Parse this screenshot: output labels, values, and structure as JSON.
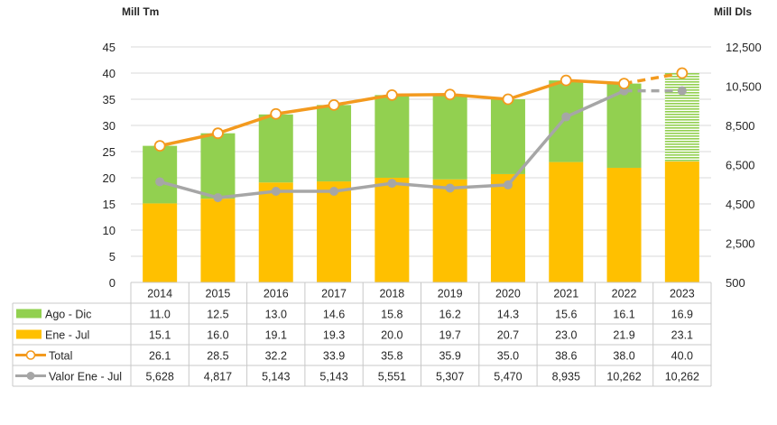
{
  "chart_data": {
    "type": "bar",
    "left_axis_label": "Mill Tm",
    "right_axis_label": "Mill Dls",
    "categories": [
      "2014",
      "2015",
      "2016",
      "2017",
      "2018",
      "2019",
      "2020",
      "2021",
      "2022",
      "2023"
    ],
    "ylim_left": [
      0,
      45
    ],
    "yticks_left": [
      "0",
      "5",
      "10",
      "15",
      "20",
      "25",
      "30",
      "35",
      "40",
      "45"
    ],
    "ylim_right": [
      500,
      12500
    ],
    "yticks_right": [
      "500",
      "2,500",
      "4,500",
      "6,500",
      "8,500",
      "10,500",
      "12,500"
    ],
    "series": [
      {
        "name": "Ago - Dic",
        "type": "bar",
        "stack": "top",
        "color": "#92D050",
        "values": [
          11.0,
          12.5,
          13.0,
          14.6,
          15.8,
          16.2,
          14.3,
          15.6,
          16.1,
          16.9
        ],
        "labels": [
          "11.0",
          "12.5",
          "13.0",
          "14.6",
          "15.8",
          "16.2",
          "14.3",
          "15.6",
          "16.1",
          "16.9"
        ]
      },
      {
        "name": "Ene - Jul",
        "type": "bar",
        "stack": "bottom",
        "color": "#FFC000",
        "values": [
          15.1,
          16.0,
          19.1,
          19.3,
          20.0,
          19.7,
          20.7,
          23.0,
          21.9,
          23.1
        ],
        "labels": [
          "15.1",
          "16.0",
          "19.1",
          "19.3",
          "20.0",
          "19.7",
          "20.7",
          "23.0",
          "21.9",
          "23.1"
        ]
      },
      {
        "name": "Total",
        "type": "line",
        "axis": "left",
        "color": "#F39A1E",
        "values": [
          26.1,
          28.5,
          32.2,
          33.9,
          35.8,
          35.9,
          35.0,
          38.6,
          38.0,
          40.0
        ],
        "labels": [
          "26.1",
          "28.5",
          "32.2",
          "33.9",
          "35.8",
          "35.9",
          "35.0",
          "38.6",
          "38.0",
          "40.0"
        ]
      },
      {
        "name": "Valor Ene - Jul",
        "type": "line",
        "axis": "right",
        "color": "#A6A6A6",
        "values": [
          5628,
          4817,
          5143,
          5143,
          5551,
          5307,
          5470,
          8935,
          10262,
          10262
        ],
        "labels": [
          "5,628",
          "4,817",
          "5,143",
          "5,143",
          "5,551",
          "5,307",
          "5,470",
          "8,935",
          "10,262",
          "10,262"
        ]
      }
    ],
    "projected_last_category": true,
    "grid": "horizontal",
    "legend": "table-left"
  }
}
